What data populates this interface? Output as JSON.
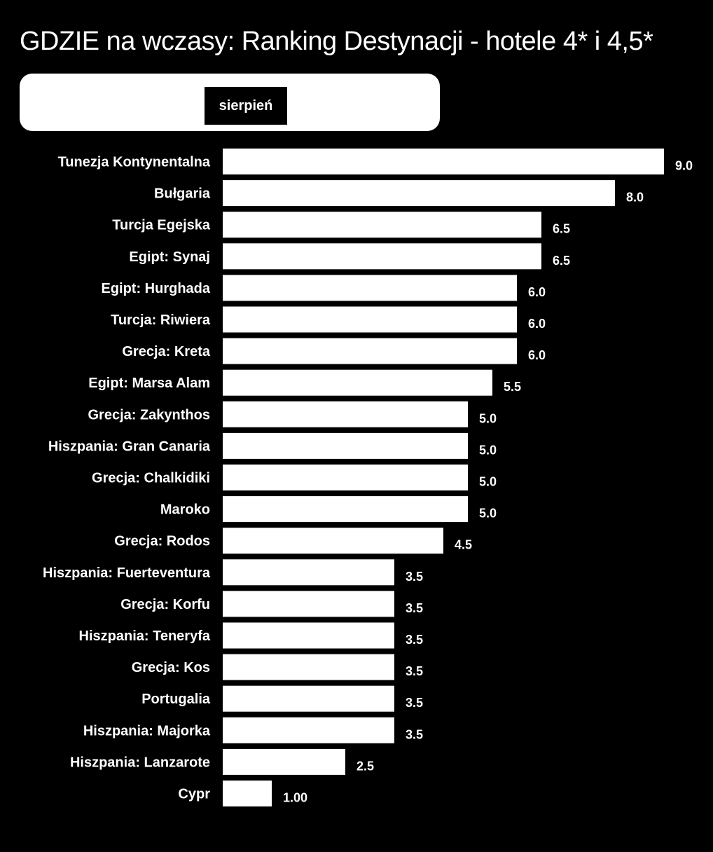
{
  "chart_data": {
    "type": "bar",
    "orientation": "horizontal",
    "title": "GDZIE na wczasy: Ranking Destynacji - hotele 4* i 4,5*",
    "period": "sierpień",
    "categories": [
      "Tunezja Kontynentalna",
      "Bułgaria",
      "Turcja Egejska",
      "Egipt: Synaj",
      "Egipt: Hurghada",
      "Turcja: Riwiera",
      "Grecja: Kreta",
      "Egipt: Marsa Alam",
      "Grecja: Zakynthos",
      "Hiszpania: Gran Canaria",
      "Grecja: Chalkidiki",
      "Maroko",
      "Grecja: Rodos",
      "Hiszpania: Fuerteventura",
      "Grecja: Korfu",
      "Hiszpania: Teneryfa",
      "Grecja: Kos",
      "Portugalia",
      "Hiszpania: Majorka",
      "Hiszpania: Lanzarote",
      "Cypr"
    ],
    "values": [
      9.0,
      8.0,
      6.5,
      6.5,
      6.0,
      6.0,
      6.0,
      5.5,
      5.0,
      5.0,
      5.0,
      5.0,
      4.5,
      3.5,
      3.5,
      3.5,
      3.5,
      3.5,
      3.5,
      2.5,
      1.0
    ],
    "value_labels": [
      "9.0",
      "8.0",
      "6.5",
      "6.5",
      "6.0",
      "6.0",
      "6.0",
      "5.5",
      "5.0",
      "5.0",
      "5.0",
      "5.0",
      "4.5",
      "3.5",
      "3.5",
      "3.5",
      "3.5",
      "3.5",
      "3.5",
      "2.5",
      "1.00"
    ],
    "xlim": [
      0,
      9.0
    ],
    "grid": false,
    "legend": "none",
    "colors": {
      "background": "#000000",
      "bar": "#ffffff",
      "text": "#ffffff"
    }
  }
}
